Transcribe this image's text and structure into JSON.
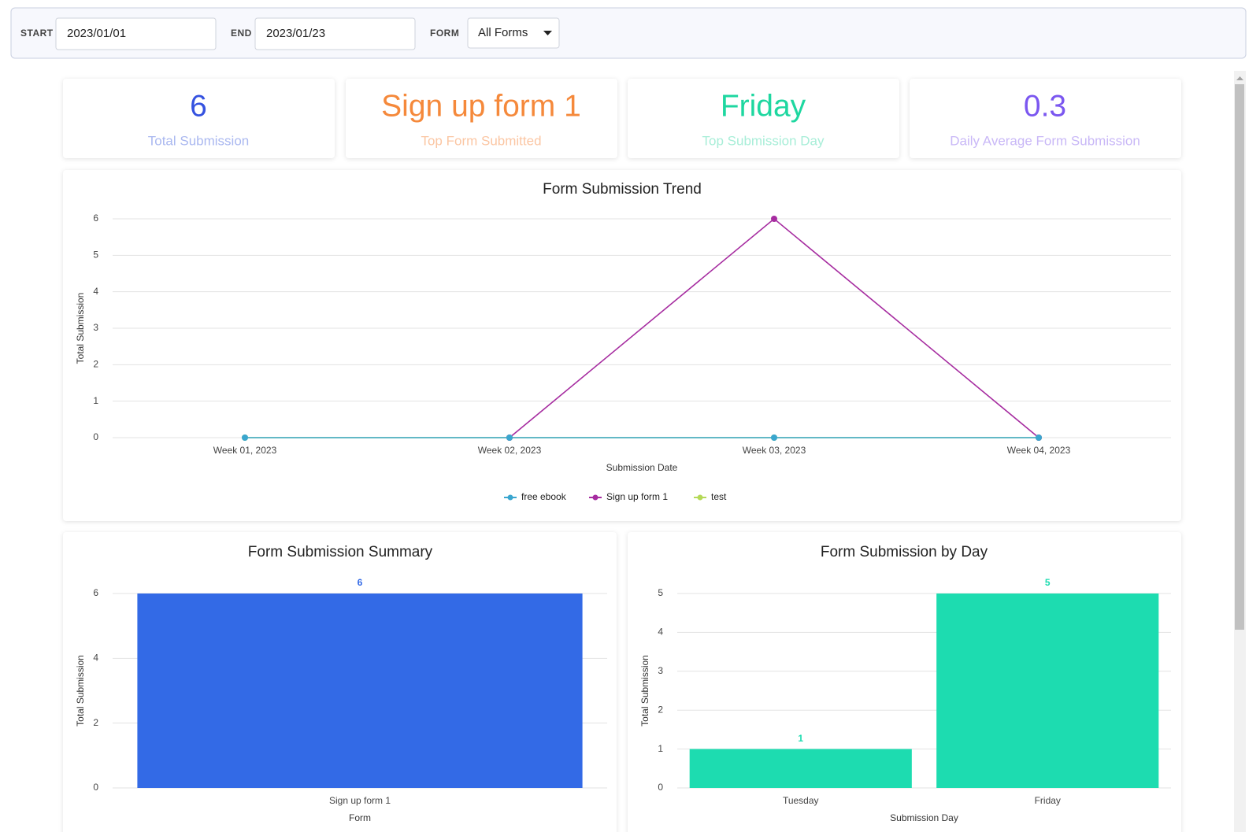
{
  "filters": {
    "start_label": "START",
    "start_value": "2023/01/01",
    "end_label": "END",
    "end_value": "2023/01/23",
    "form_label": "FORM",
    "form_value": "All Forms"
  },
  "cards": [
    {
      "value": 6,
      "label": "Total Submission"
    },
    {
      "value": "Sign up form 1",
      "label": "Top Form Submitted"
    },
    {
      "value": "Friday",
      "label": "Top Submission Day"
    },
    {
      "value": 0.3,
      "label": "Daily Average Form Submission"
    }
  ],
  "chart_data": [
    {
      "type": "line",
      "title": "Form Submission Trend",
      "x_label": "Submission Date",
      "y_label": "Total Submission",
      "categories": [
        "Week 01, 2023",
        "Week 02, 2023",
        "Week 03, 2023",
        "Week 04, 2023"
      ],
      "series": [
        {
          "name": "free ebook",
          "color": "#3aa6cf",
          "values": [
            0,
            0,
            0,
            0
          ]
        },
        {
          "name": "Sign up form 1",
          "color": "#a62ca0",
          "values": [
            null,
            0,
            6,
            0
          ]
        },
        {
          "name": "test",
          "color": "#b5d957",
          "values": [
            0,
            0,
            0,
            0
          ]
        }
      ],
      "ylim": [
        0,
        6
      ],
      "yticks": [
        0,
        1,
        2,
        3,
        4,
        5,
        6
      ],
      "grid": true,
      "legend": "bottom"
    },
    {
      "type": "bar",
      "title": "Form Submission Summary",
      "x_label": "Form",
      "y_label": "Total Submission",
      "categories": [
        "Sign up form 1"
      ],
      "values": [
        6
      ],
      "color": "#336ae6",
      "ylim": [
        0,
        6
      ],
      "yticks": [
        0,
        2,
        4,
        6
      ],
      "grid": true
    },
    {
      "type": "bar",
      "title": "Form Submission by Day",
      "x_label": "Submission Day",
      "y_label": "Total Submission",
      "categories": [
        "Tuesday",
        "Friday"
      ],
      "values": [
        1,
        5
      ],
      "color": "#1ddcb0",
      "ylim": [
        0,
        5
      ],
      "yticks": [
        0,
        1,
        2,
        3,
        4,
        5
      ],
      "grid": true
    }
  ]
}
